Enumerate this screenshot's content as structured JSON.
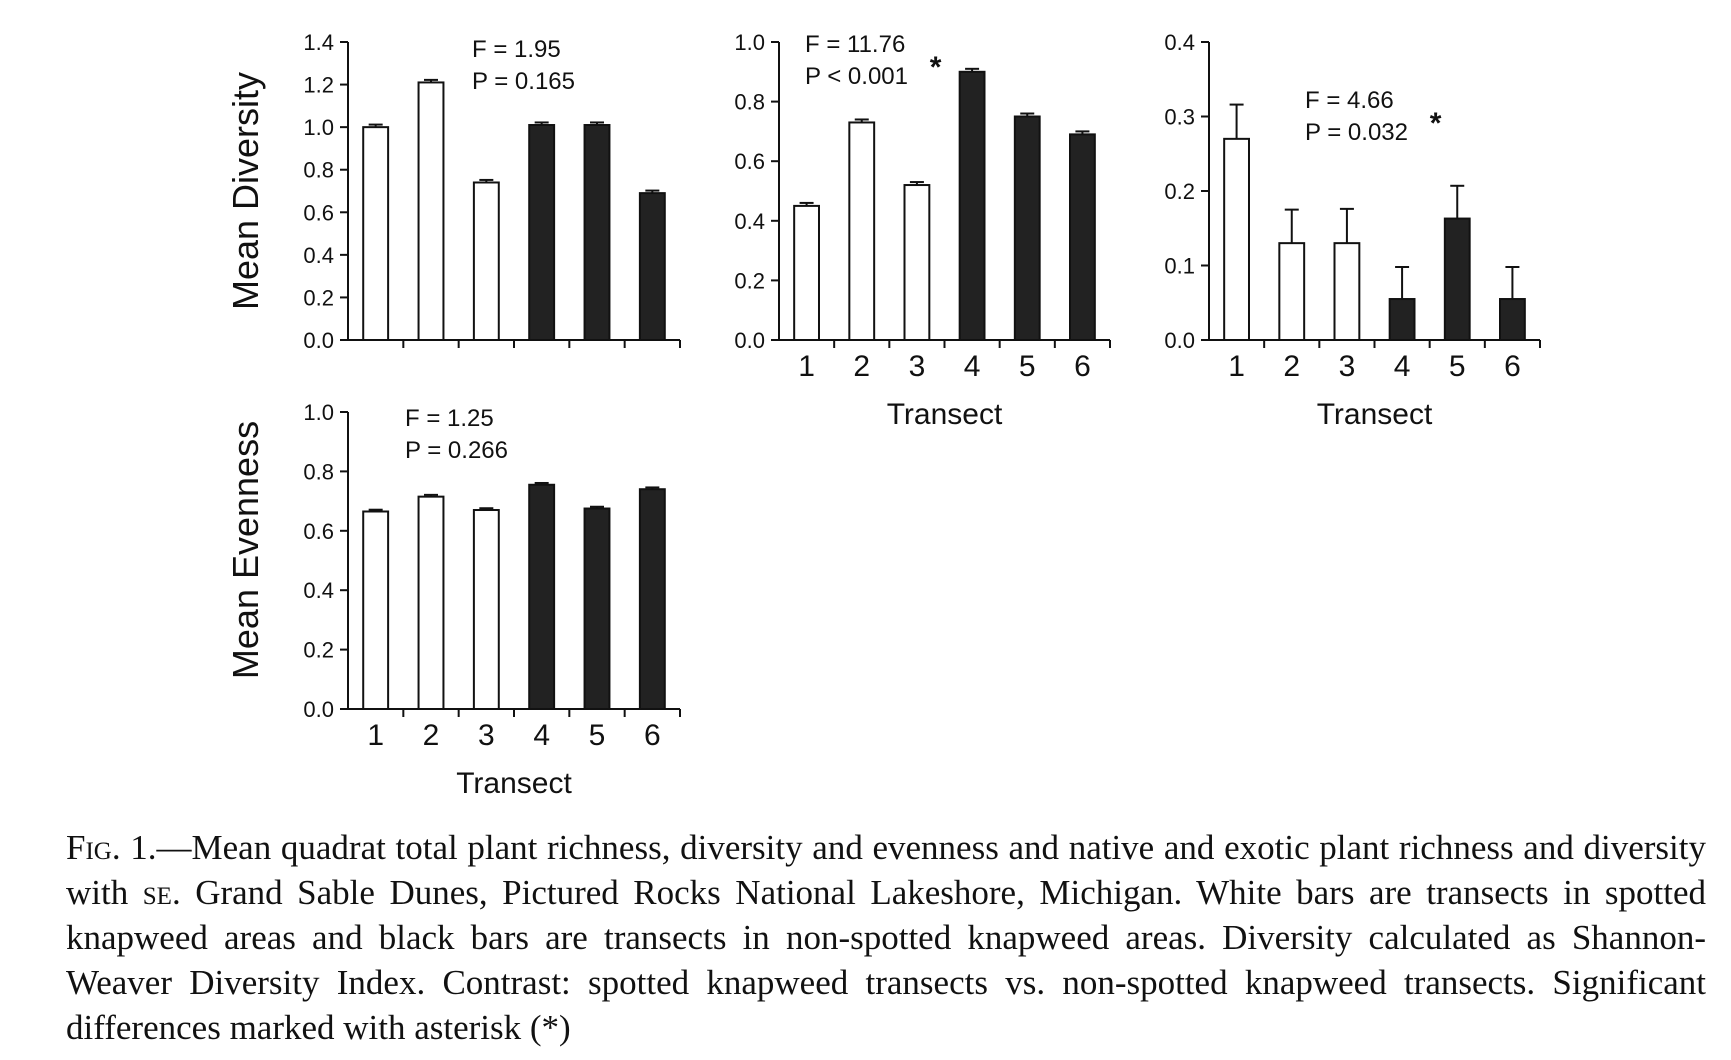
{
  "chart_data": [
    {
      "type": "bar",
      "id": "diversity-a",
      "categories": [
        "1",
        "2",
        "3",
        "4",
        "5",
        "6"
      ],
      "show_tick_labels": false,
      "values": [
        1.0,
        1.21,
        0.74,
        1.01,
        1.01,
        0.69
      ],
      "errors": [
        0.012,
        0.012,
        0.012,
        0.012,
        0.012,
        0.012
      ],
      "fills": [
        "white",
        "white",
        "white",
        "black",
        "black",
        "black"
      ],
      "ylim": [
        0,
        1.4
      ],
      "yticks": [
        "0.0",
        "0.2",
        "0.4",
        "0.6",
        "0.8",
        "1.0",
        "1.2",
        "1.4"
      ],
      "ylabel": "Mean Diversity",
      "xlabel": "",
      "stat_line1": "F = 1.95",
      "stat_line2": "P = 0.165",
      "significance": ""
    },
    {
      "type": "bar",
      "id": "diversity-b",
      "categories": [
        "1",
        "2",
        "3",
        "4",
        "5",
        "6"
      ],
      "show_tick_labels": true,
      "values": [
        0.45,
        0.73,
        0.52,
        0.9,
        0.75,
        0.69
      ],
      "errors": [
        0.01,
        0.01,
        0.01,
        0.01,
        0.01,
        0.01
      ],
      "fills": [
        "white",
        "white",
        "white",
        "black",
        "black",
        "black"
      ],
      "ylim": [
        0,
        1.0
      ],
      "yticks": [
        "0.0",
        "0.2",
        "0.4",
        "0.6",
        "0.8",
        "1.0"
      ],
      "ylabel": "",
      "xlabel": "Transect",
      "stat_line1": "F = 11.76",
      "stat_line2": "P < 0.001",
      "significance": "*"
    },
    {
      "type": "bar",
      "id": "diversity-c",
      "categories": [
        "1",
        "2",
        "3",
        "4",
        "5",
        "6"
      ],
      "show_tick_labels": true,
      "values": [
        0.27,
        0.13,
        0.13,
        0.055,
        0.163,
        0.055
      ],
      "errors": [
        0.046,
        0.045,
        0.046,
        0.043,
        0.044,
        0.043
      ],
      "fills": [
        "white",
        "white",
        "white",
        "black",
        "black",
        "black"
      ],
      "ylim": [
        0,
        0.4
      ],
      "yticks": [
        "0.0",
        "0.1",
        "0.2",
        "0.3",
        "0.4"
      ],
      "ylabel": "",
      "xlabel": "Transect",
      "stat_line1": "F = 4.66",
      "stat_line2": "P = 0.032",
      "significance": "*"
    },
    {
      "type": "bar",
      "id": "evenness",
      "categories": [
        "1",
        "2",
        "3",
        "4",
        "5",
        "6"
      ],
      "show_tick_labels": true,
      "values": [
        0.665,
        0.715,
        0.67,
        0.755,
        0.675,
        0.74
      ],
      "errors": [
        0.006,
        0.006,
        0.006,
        0.006,
        0.006,
        0.006
      ],
      "fills": [
        "white",
        "white",
        "white",
        "black",
        "black",
        "black"
      ],
      "ylim": [
        0,
        1.0
      ],
      "yticks": [
        "0.0",
        "0.2",
        "0.4",
        "0.6",
        "0.8",
        "1.0"
      ],
      "ylabel": "Mean Evenness",
      "xlabel": "Transect",
      "stat_line1": "F = 1.25",
      "stat_line2": "P = 0.266",
      "significance": ""
    }
  ],
  "caption": {
    "fig_label": "Fig. 1.",
    "part1": "—Mean quadrat total plant richness, diversity and evenness and native and exotic plant richness and diversity with ",
    "se": "se",
    "part2": ". Grand Sable Dunes, Pictured Rocks National Lakeshore, Michigan. White bars are transects in spotted knapweed areas and black bars are transects in non-spotted knapweed areas. Diversity calculated as Shannon-Weaver Diversity Index. Contrast: spotted knapweed transects vs. non-spotted knapweed transects. Significant differences marked with asterisk (*)"
  }
}
